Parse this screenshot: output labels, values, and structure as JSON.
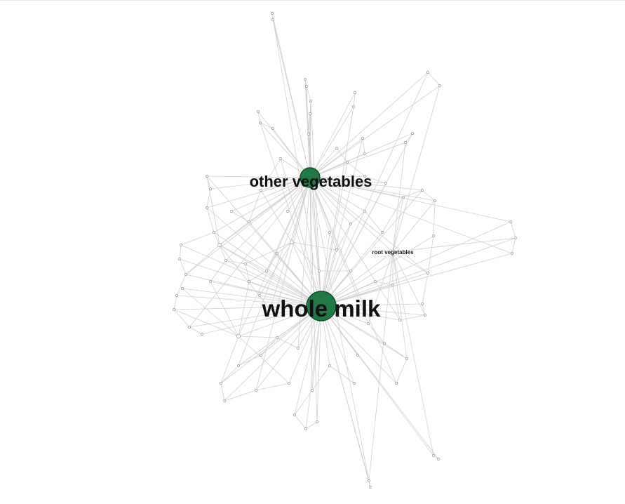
{
  "graph": {
    "hub_color": "#1f7a44",
    "minor_hub_color": "#9ad7b4",
    "edge_color": "#cfcfcf",
    "labels": {
      "whole_milk": "whole milk",
      "other_vegetables": "other vegetables",
      "root_vegetables": "root vegetables"
    }
  }
}
